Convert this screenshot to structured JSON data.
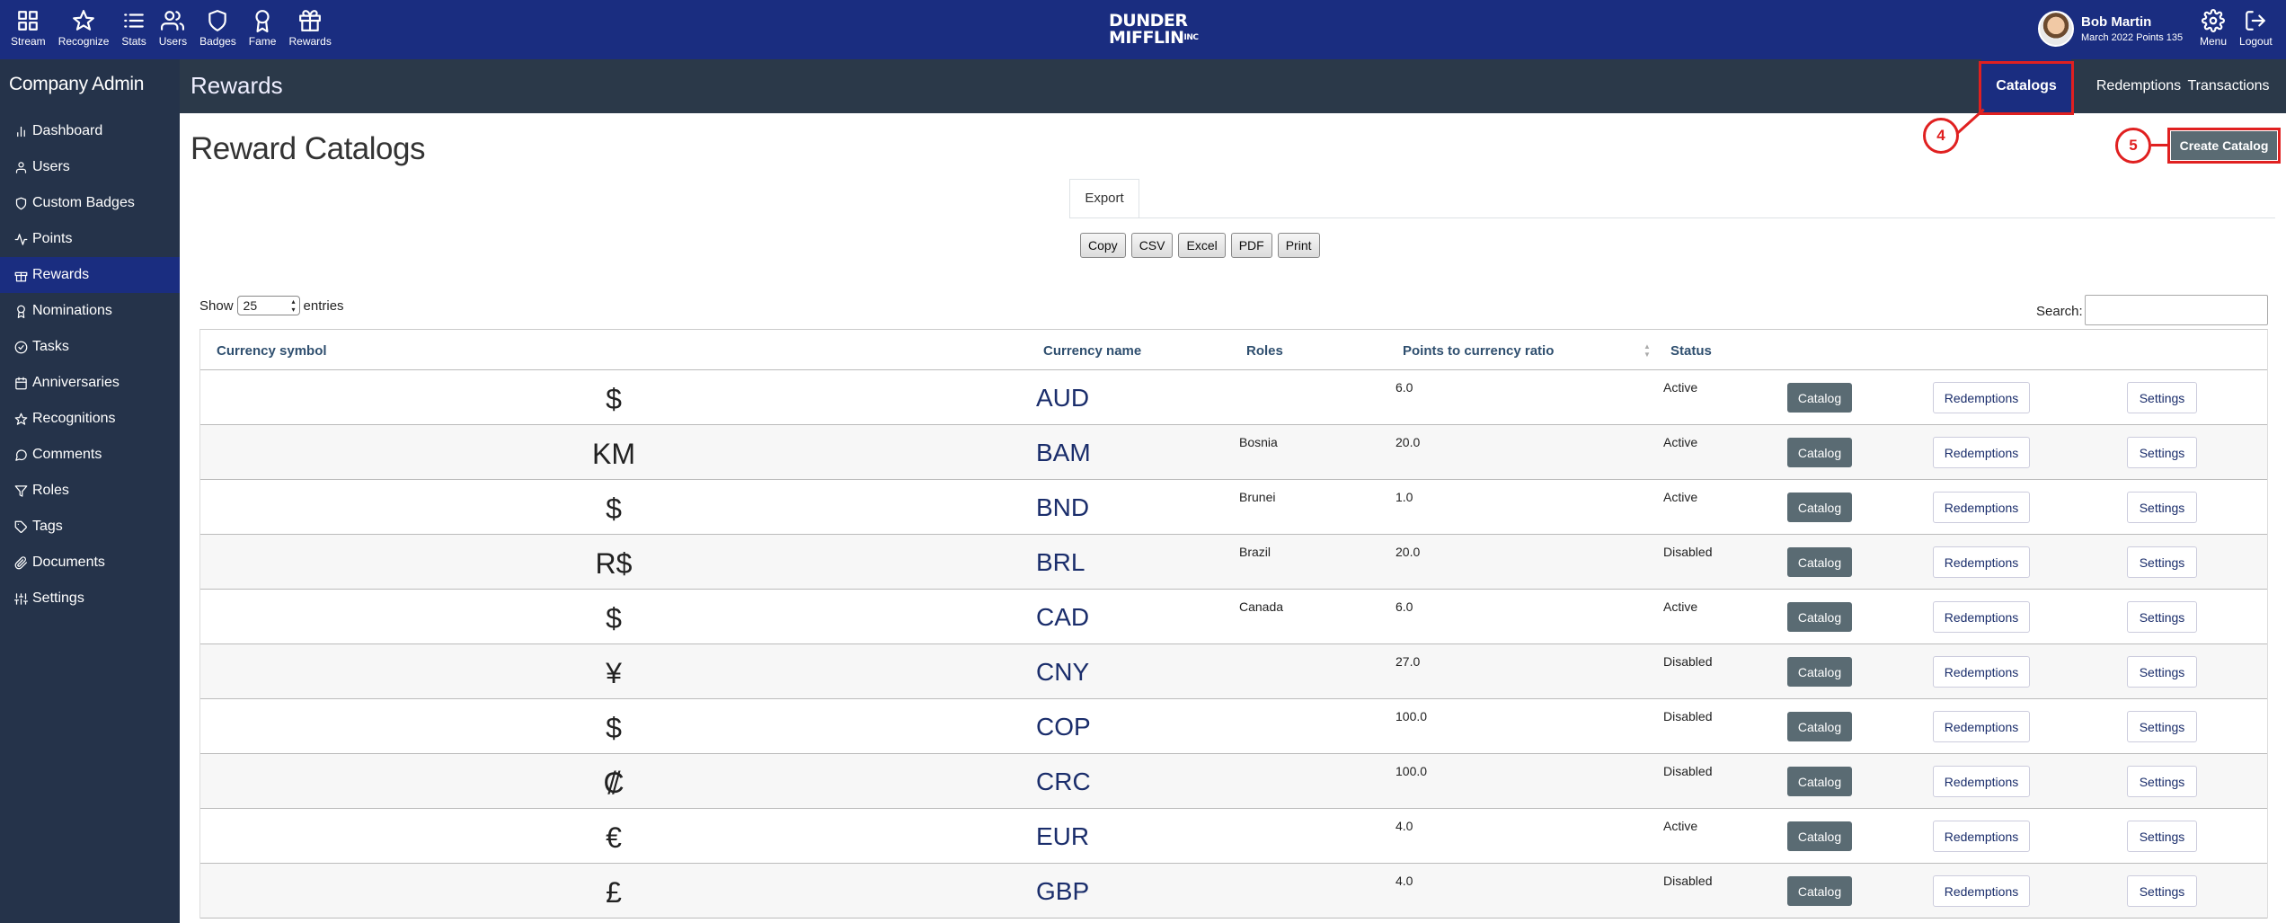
{
  "topbar": {
    "nav": [
      {
        "label": "Stream",
        "icon": "grid-icon"
      },
      {
        "label": "Recognize",
        "icon": "star-icon"
      },
      {
        "label": "Stats",
        "icon": "list-icon"
      },
      {
        "label": "Users",
        "icon": "users-icon"
      },
      {
        "label": "Badges",
        "icon": "shield-icon"
      },
      {
        "label": "Fame",
        "icon": "award-icon"
      },
      {
        "label": "Rewards",
        "icon": "gift-icon"
      }
    ],
    "logo_line1": "DUNDER",
    "logo_line2": "MIFFLIN",
    "logo_mark": "INC",
    "user_name": "Bob Martin",
    "user_sub": "March 2022 Points 135",
    "menu_label": "Menu",
    "logout_label": "Logout",
    "bar_color": "#1a2d80"
  },
  "sidebar": {
    "title": "Company Admin",
    "items": [
      {
        "label": "Dashboard",
        "icon": "bar-chart-icon"
      },
      {
        "label": "Users",
        "icon": "user-icon"
      },
      {
        "label": "Custom Badges",
        "icon": "shield-icon"
      },
      {
        "label": "Points",
        "icon": "activity-icon"
      },
      {
        "label": "Rewards",
        "icon": "gift-icon",
        "active": true
      },
      {
        "label": "Nominations",
        "icon": "award-icon"
      },
      {
        "label": "Tasks",
        "icon": "check-circle-icon"
      },
      {
        "label": "Anniversaries",
        "icon": "calendar-icon"
      },
      {
        "label": "Recognitions",
        "icon": "star-icon"
      },
      {
        "label": "Comments",
        "icon": "message-circle-icon"
      },
      {
        "label": "Roles",
        "icon": "filter-icon"
      },
      {
        "label": "Tags",
        "icon": "tag-icon"
      },
      {
        "label": "Documents",
        "icon": "paperclip-icon"
      },
      {
        "label": "Settings",
        "icon": "sliders-icon"
      }
    ]
  },
  "subheader": {
    "title": "Rewards",
    "tabs": [
      {
        "label": "Catalogs",
        "active": true
      },
      {
        "label": "Redemptions"
      },
      {
        "label": "Transactions"
      }
    ]
  },
  "main": {
    "title": "Reward Catalogs",
    "create_button": "Create Catalog",
    "callout_tab": "4",
    "callout_create": "5",
    "export_tab": "Export",
    "export_buttons": [
      "Copy",
      "CSV",
      "Excel",
      "PDF",
      "Print"
    ],
    "show_label": "Show",
    "entries_value": "25",
    "entries_label": "entries",
    "search_label": "Search:",
    "search_value": ""
  },
  "table": {
    "headers": {
      "symbol": "Currency symbol",
      "name": "Currency name",
      "roles": "Roles",
      "ratio": "Points to currency ratio",
      "status": "Status"
    },
    "action_catalog": "Catalog",
    "action_redemptions": "Redemptions",
    "action_settings": "Settings",
    "rows": [
      {
        "symbol": "$",
        "currency": "AUD",
        "role": "",
        "ratio": "6.0",
        "status": "Active"
      },
      {
        "symbol": "KM",
        "currency": "BAM",
        "role": "Bosnia",
        "ratio": "20.0",
        "status": "Active"
      },
      {
        "symbol": "$",
        "currency": "BND",
        "role": "Brunei",
        "ratio": "1.0",
        "status": "Active"
      },
      {
        "symbol": "R$",
        "currency": "BRL",
        "role": "Brazil",
        "ratio": "20.0",
        "status": "Disabled"
      },
      {
        "symbol": "$",
        "currency": "CAD",
        "role": "Canada",
        "ratio": "6.0",
        "status": "Active"
      },
      {
        "symbol": "¥",
        "currency": "CNY",
        "role": "",
        "ratio": "27.0",
        "status": "Disabled"
      },
      {
        "symbol": "$",
        "currency": "COP",
        "role": "",
        "ratio": "100.0",
        "status": "Disabled"
      },
      {
        "symbol": "₡",
        "currency": "CRC",
        "role": "",
        "ratio": "100.0",
        "status": "Disabled"
      },
      {
        "symbol": "€",
        "currency": "EUR",
        "role": "",
        "ratio": "4.0",
        "status": "Active"
      },
      {
        "symbol": "£",
        "currency": "GBP",
        "role": "",
        "ratio": "4.0",
        "status": "Disabled"
      }
    ]
  }
}
